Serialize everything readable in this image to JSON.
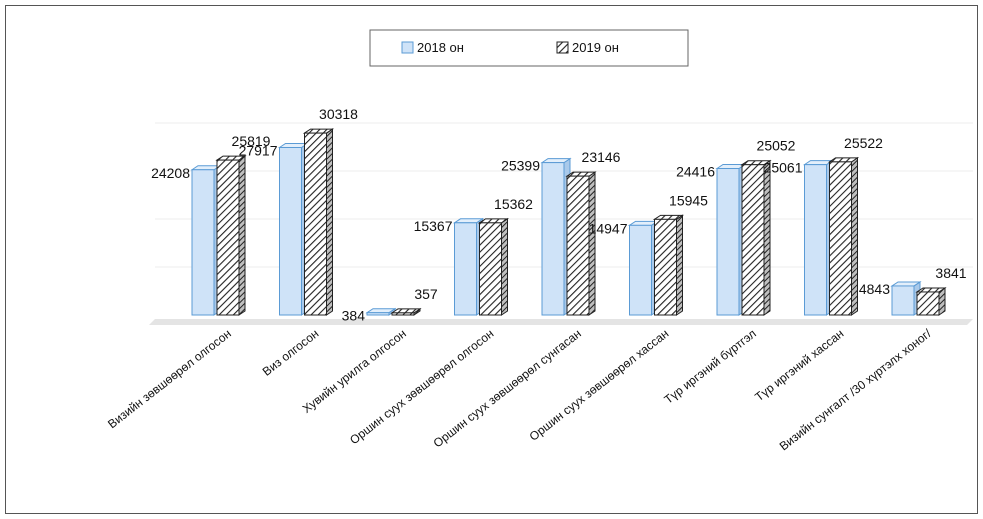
{
  "chart_data": {
    "type": "bar",
    "title": "",
    "xlabel": "",
    "ylabel": "",
    "ylim": [
      0,
      32000
    ],
    "grid": true,
    "legend_position": "top-center",
    "categories": [
      "Визийн зөвшөөрөл олгосон",
      "Виз олгосон",
      "Хувийн урилга олгосон",
      "Оршин суух зөвшөөрөл олгосон",
      "Оршин суух зөвшөөрөл сунгасан",
      "Оршин суух зөвшөөрөл хассан",
      "Түр иргэний бүртгэл",
      "Түр иргэний хассан",
      "Визийн сунгалт /30 хүртэлх хоног/"
    ],
    "series": [
      {
        "name": "2018 он",
        "values": [
          24208,
          27917,
          384,
          15367,
          25399,
          14947,
          24416,
          25061,
          4843
        ]
      },
      {
        "name": "2019 он",
        "values": [
          25819,
          30318,
          357,
          15362,
          23146,
          15945,
          25052,
          25522,
          3841
        ]
      }
    ],
    "colors": {
      "series_2018": "#cfe3f8",
      "series_2018_edge": "#5b9bd5",
      "series_2019": "#ffffff",
      "series_2019_edge": "#222222"
    }
  }
}
